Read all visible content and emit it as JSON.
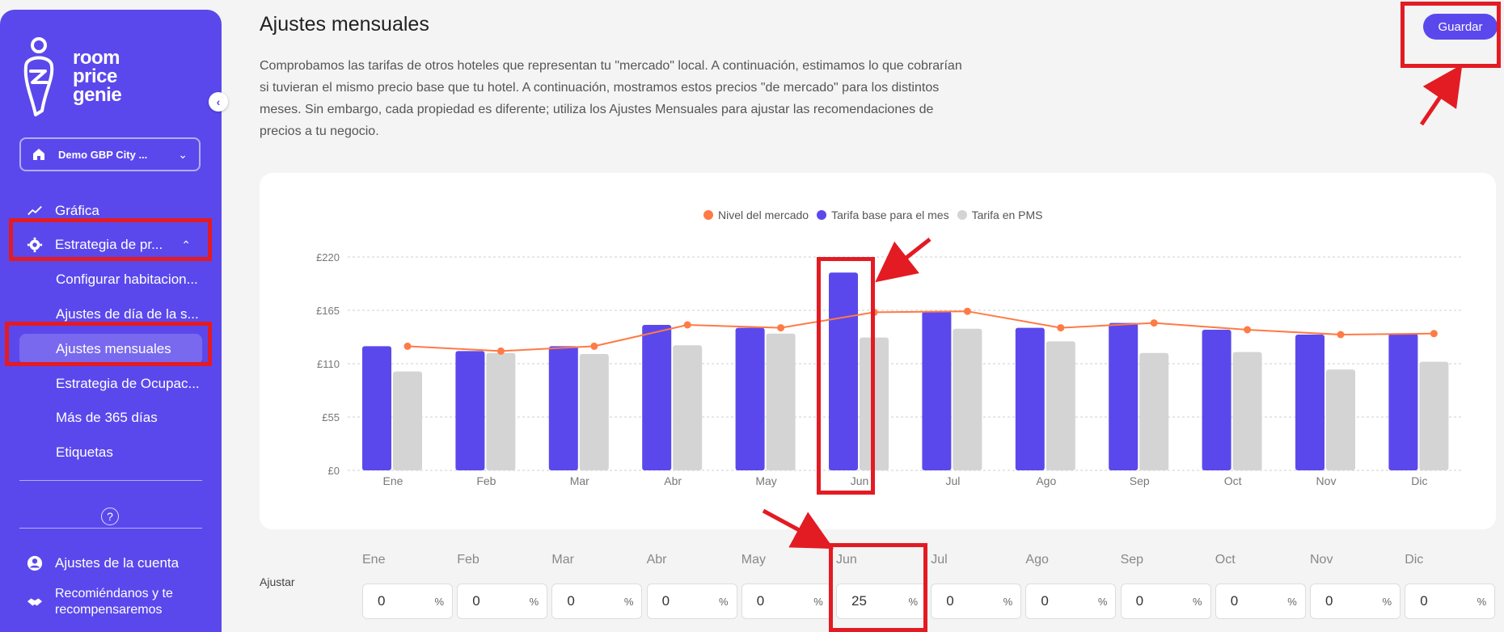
{
  "brand": {
    "name": "room price genie"
  },
  "sidebar": {
    "property": "Demo GBP City ...",
    "items": [
      {
        "label": "Gráfica"
      },
      {
        "label": "Estrategia de pr..."
      },
      {
        "label": "Configurar habitacion..."
      },
      {
        "label": "Ajustes de día de la s..."
      },
      {
        "label": "Ajustes mensuales"
      },
      {
        "label": "Estrategia de Ocupac..."
      },
      {
        "label": "Más de 365 días"
      },
      {
        "label": "Etiquetas"
      },
      {
        "label": "Ajustes de la cuenta"
      },
      {
        "label": "Recomiéndanos y te recompensaremos"
      }
    ],
    "help": "?"
  },
  "header": {
    "title": "Ajustes mensuales",
    "save_label": "Guardar",
    "intro": "Comprobamos las tarifas de otros hoteles que representan tu \"mercado\" local. A continuación, estimamos lo que cobrarían si tuvieran el mismo precio base que tu hotel. A continuación, mostramos estos precios \"de mercado\" para los distintos meses. Sin embargo, cada propiedad es diferente; utiliza los Ajustes Mensuales para ajustar las recomendaciones de precios a tu negocio."
  },
  "colors": {
    "accent": "#5b48ec",
    "market": "#ff7a45",
    "pms": "#d4d4d4",
    "annotation": "#e31b23"
  },
  "chart_data": {
    "type": "bar",
    "categories": [
      "Ene",
      "Feb",
      "Mar",
      "Abr",
      "May",
      "Jun",
      "Jul",
      "Ago",
      "Sep",
      "Oct",
      "Nov",
      "Dic"
    ],
    "series": [
      {
        "name": "Nivel del mercado",
        "kind": "line",
        "values": [
          128,
          123,
          128,
          150,
          147,
          163,
          164,
          147,
          152,
          145,
          140,
          141
        ]
      },
      {
        "name": "Tarifa base para el mes",
        "kind": "bar",
        "values": [
          128,
          123,
          128,
          150,
          147,
          204,
          164,
          147,
          152,
          145,
          140,
          141
        ]
      },
      {
        "name": "Tarifa en PMS",
        "kind": "bar",
        "values": [
          102,
          121,
          120,
          129,
          141,
          137,
          146,
          133,
          121,
          122,
          104,
          112
        ]
      }
    ],
    "yticks": [
      "£0",
      "£55",
      "£110",
      "£165",
      "£220"
    ],
    "ylim": [
      0,
      220
    ],
    "grid": true,
    "legend": "top-center"
  },
  "adjust": {
    "label": "Ajustar",
    "unit": "%",
    "months": [
      {
        "name": "Ene",
        "value": "0"
      },
      {
        "name": "Feb",
        "value": "0"
      },
      {
        "name": "Mar",
        "value": "0"
      },
      {
        "name": "Abr",
        "value": "0"
      },
      {
        "name": "May",
        "value": "0"
      },
      {
        "name": "Jun",
        "value": "25"
      },
      {
        "name": "Jul",
        "value": "0"
      },
      {
        "name": "Ago",
        "value": "0"
      },
      {
        "name": "Sep",
        "value": "0"
      },
      {
        "name": "Oct",
        "value": "0"
      },
      {
        "name": "Nov",
        "value": "0"
      },
      {
        "name": "Dic",
        "value": "0"
      }
    ]
  }
}
